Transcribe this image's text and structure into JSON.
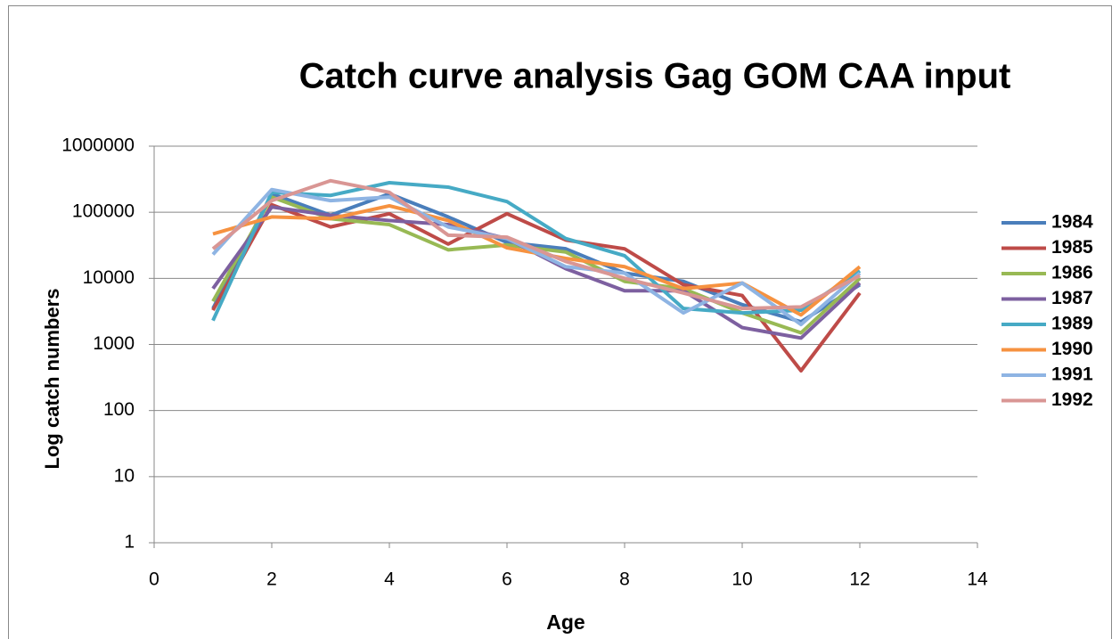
{
  "chart_data": {
    "type": "line",
    "title": "Catch curve analysis Gag GOM CAA input",
    "x_label": "Age",
    "y_label": "Log catch numbers",
    "x": [
      1,
      2,
      3,
      4,
      5,
      6,
      7,
      8,
      9,
      10,
      11,
      12
    ],
    "series": [
      {
        "name": "1984",
        "color": "#4a7ebb",
        "values": [
          3500,
          190000,
          90000,
          190000,
          85000,
          35000,
          28000,
          12000,
          9000,
          4000,
          2200,
          8000
        ]
      },
      {
        "name": "1985",
        "color": "#be4b48",
        "values": [
          3300,
          130000,
          60000,
          95000,
          33000,
          95000,
          38000,
          28000,
          8000,
          5500,
          400,
          6000
        ]
      },
      {
        "name": "1986",
        "color": "#98b954",
        "values": [
          4500,
          170000,
          80000,
          65000,
          27000,
          32000,
          25000,
          9000,
          7000,
          3000,
          1500,
          10000
        ]
      },
      {
        "name": "1987",
        "color": "#7d60a0",
        "values": [
          7000,
          120000,
          90000,
          75000,
          65000,
          40000,
          14000,
          6500,
          6500,
          1800,
          1250,
          8500
        ]
      },
      {
        "name": "1989",
        "color": "#46aac5",
        "values": [
          2300,
          200000,
          180000,
          280000,
          240000,
          145000,
          40000,
          22000,
          3500,
          3000,
          3300,
          13000
        ]
      },
      {
        "name": "1990",
        "color": "#f69240",
        "values": [
          47000,
          85000,
          80000,
          125000,
          75000,
          29000,
          20000,
          15000,
          7000,
          8500,
          2800,
          15000
        ]
      },
      {
        "name": "1991",
        "color": "#8eb4e3",
        "values": [
          23000,
          220000,
          150000,
          170000,
          60000,
          40000,
          15000,
          12000,
          3000,
          8500,
          2000,
          12000
        ]
      },
      {
        "name": "1992",
        "color": "#d99694",
        "values": [
          28000,
          150000,
          300000,
          200000,
          45000,
          42000,
          18000,
          10000,
          6000,
          3500,
          3700,
          11000
        ]
      }
    ],
    "xlim": [
      0,
      14
    ],
    "xticks": [
      0,
      2,
      4,
      6,
      8,
      10,
      12,
      14
    ],
    "ylim": [
      1,
      1000000
    ],
    "yticks": [
      1,
      10,
      100,
      1000,
      10000,
      100000,
      1000000
    ],
    "y_scale": "log",
    "grid": true,
    "legend": "right"
  }
}
